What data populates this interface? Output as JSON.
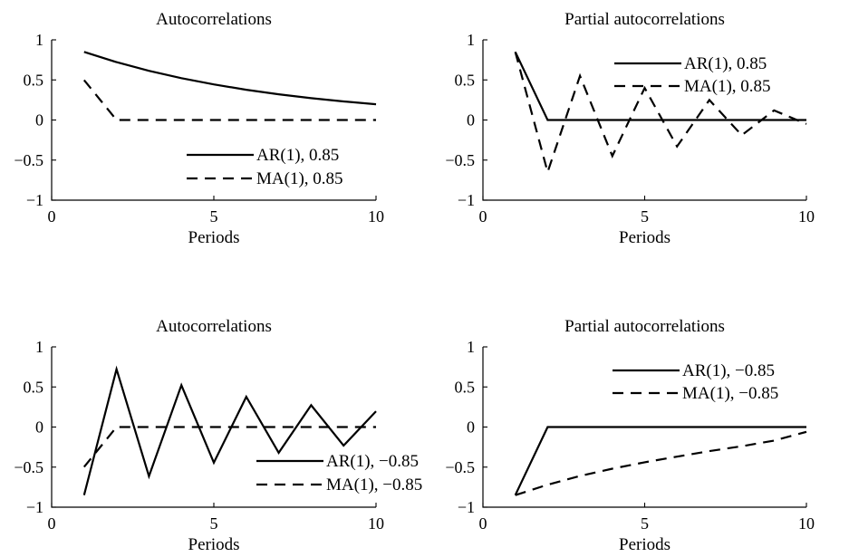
{
  "chart_data": [
    {
      "type": "line",
      "title": "Autocorrelations",
      "xlabel": "Periods",
      "ylabel": "",
      "xlim": [
        0,
        10
      ],
      "ylim": [
        -1,
        1
      ],
      "xticks": [
        "0",
        "5",
        "10"
      ],
      "yticks": [
        "1",
        "0.5",
        "0",
        "−0.5",
        "−1"
      ],
      "legend_position": "bottom-right",
      "series": [
        {
          "name": "AR(1), 0.85",
          "style": "solid",
          "x": [
            1,
            2,
            3,
            4,
            5,
            6,
            7,
            8,
            9,
            10
          ],
          "values": [
            0.85,
            0.7225,
            0.6141,
            0.522,
            0.4437,
            0.3771,
            0.3206,
            0.2725,
            0.2316,
            0.1969
          ]
        },
        {
          "name": "MA(1), 0.85",
          "style": "dashed",
          "x": [
            1,
            2,
            3,
            4,
            5,
            6,
            7,
            8,
            9,
            10
          ],
          "values": [
            0.4983,
            0,
            0,
            0,
            0,
            0,
            0,
            0,
            0,
            0
          ]
        }
      ]
    },
    {
      "type": "line",
      "title": "Partial autocorrelations",
      "xlabel": "Periods",
      "ylabel": "",
      "xlim": [
        0,
        10
      ],
      "ylim": [
        -1,
        1
      ],
      "xticks": [
        "0",
        "5",
        "10"
      ],
      "yticks": [
        "1",
        "0.5",
        "0",
        "−0.5",
        "−1"
      ],
      "legend_position": "top-right",
      "series": [
        {
          "name": "AR(1), 0.85",
          "style": "solid",
          "x": [
            1,
            2,
            3,
            4,
            5,
            6,
            7,
            8,
            9,
            10
          ],
          "values": [
            0.85,
            0,
            0,
            0,
            0,
            0,
            0,
            0,
            0,
            0
          ]
        },
        {
          "name": "MA(1), 0.85",
          "style": "dashed",
          "x": [
            1,
            2,
            3,
            4,
            5,
            6,
            7,
            8,
            9,
            10
          ],
          "values": [
            0.85,
            -0.65,
            0.55,
            -0.45,
            0.4,
            -0.33,
            0.25,
            -0.19,
            0.12,
            -0.05
          ]
        }
      ]
    },
    {
      "type": "line",
      "title": "Autocorrelations",
      "xlabel": "Periods",
      "ylabel": "",
      "xlim": [
        0,
        10
      ],
      "ylim": [
        -1,
        1
      ],
      "xticks": [
        "0",
        "5",
        "10"
      ],
      "yticks": [
        "1",
        "0.5",
        "0",
        "−0.5",
        "−1"
      ],
      "legend_position": "bottom-right",
      "series": [
        {
          "name": "AR(1), −0.85",
          "style": "solid",
          "x": [
            1,
            2,
            3,
            4,
            5,
            6,
            7,
            8,
            9,
            10
          ],
          "values": [
            -0.85,
            0.7225,
            -0.6141,
            0.522,
            -0.4437,
            0.3771,
            -0.3206,
            0.2725,
            -0.2316,
            0.1969
          ]
        },
        {
          "name": "MA(1), −0.85",
          "style": "dashed",
          "x": [
            1,
            2,
            3,
            4,
            5,
            6,
            7,
            8,
            9,
            10
          ],
          "values": [
            -0.4983,
            0,
            0,
            0,
            0,
            0,
            0,
            0,
            0,
            0
          ]
        }
      ]
    },
    {
      "type": "line",
      "title": "Partial autocorrelations",
      "xlabel": "Periods",
      "ylabel": "",
      "xlim": [
        0,
        10
      ],
      "ylim": [
        -1,
        1
      ],
      "xticks": [
        "0",
        "5",
        "10"
      ],
      "yticks": [
        "1",
        "0.5",
        "0",
        "−0.5",
        "−1"
      ],
      "legend_position": "top-right",
      "series": [
        {
          "name": "AR(1), −0.85",
          "style": "solid",
          "x": [
            1,
            2,
            3,
            4,
            5,
            6,
            7,
            8,
            9,
            10
          ],
          "values": [
            -0.85,
            0,
            0,
            0,
            0,
            0,
            0,
            0,
            0,
            0
          ]
        },
        {
          "name": "MA(1), −0.85",
          "style": "dashed",
          "x": [
            1,
            2,
            3,
            4,
            5,
            6,
            7,
            8,
            9,
            10
          ],
          "values": [
            -0.85,
            -0.72,
            -0.61,
            -0.52,
            -0.44,
            -0.37,
            -0.3,
            -0.24,
            -0.17,
            -0.06
          ]
        }
      ]
    }
  ]
}
